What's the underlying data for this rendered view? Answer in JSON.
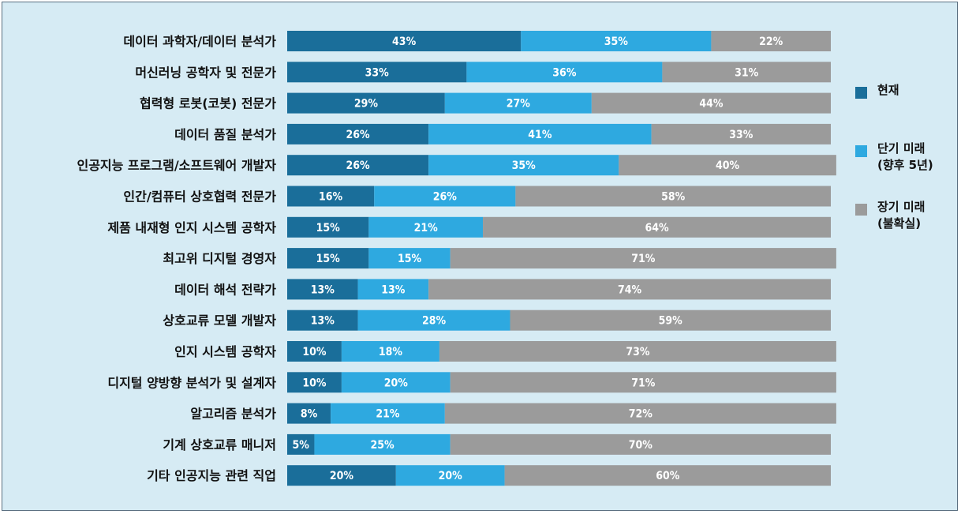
{
  "colors": {
    "background": "#d6ebf4",
    "current": "#1a6e9a",
    "short_term": "#2ea9e0",
    "long_term": "#9b9b9b"
  },
  "chart_data": {
    "type": "bar",
    "orientation": "horizontal",
    "stacked": true,
    "categories": [
      "데이터 과학자/데이터 분석가",
      "머신러닝 공학자 및 전문가",
      "협력형 로봇(코봇) 전문가",
      "데이터 품질 분석가",
      "인공지능 프로그램/소프트웨어 개발자",
      "인간/컴퓨터 상호협력 전문가",
      "제품 내재형 인지 시스템 공학자",
      "최고위 디지털 경영자",
      "데이터 해석 전략가",
      "상호교류 모델 개발자",
      "인지 시스템 공학자",
      "디지털 양방향 분석가 및 설계자",
      "알고리즘 분석가",
      "기계 상호교류 매니저",
      "기타 인공지능 관련 직업"
    ],
    "series": [
      {
        "name": "현재",
        "values": [
          43,
          33,
          29,
          26,
          26,
          16,
          15,
          15,
          13,
          13,
          10,
          10,
          8,
          5,
          20
        ]
      },
      {
        "name": "단기 미래\n(향후 5년)",
        "values": [
          35,
          36,
          27,
          41,
          35,
          26,
          21,
          15,
          13,
          28,
          18,
          20,
          21,
          25,
          20
        ]
      },
      {
        "name": "장기 미래\n(불확실)",
        "values": [
          22,
          31,
          44,
          33,
          40,
          58,
          64,
          71,
          74,
          59,
          73,
          71,
          72,
          70,
          60
        ]
      }
    ],
    "value_suffix": "%",
    "xlim": [
      0,
      100
    ],
    "grid": false,
    "legend_position": "right"
  }
}
